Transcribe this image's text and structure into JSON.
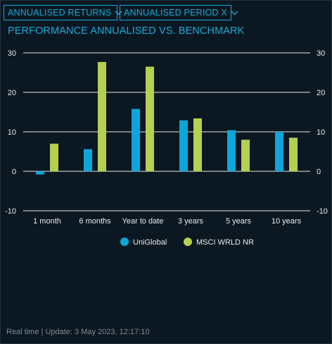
{
  "controls": {
    "returns_dropdown": "ANNUALISED RETURNS",
    "period_dropdown": "ANNUALISED PERIOD X"
  },
  "footer": {
    "status": "Real time",
    "separator": "|",
    "update_text": "Update: 3 May 2023, 12:17:10"
  },
  "colors": {
    "background": "#0b1822",
    "accent": "#1ea8d6",
    "series_uniglobal": "#0ea5d9",
    "series_msci": "#b5cf4f",
    "text": "#e8eaec",
    "footer_text": "#7f8a93"
  },
  "chart_data": {
    "type": "bar",
    "title": "PERFORMANCE ANNUALISED VS. BENCHMARK",
    "categories": [
      "1 month",
      "6 months",
      "Year to date",
      "3 years",
      "5 years",
      "10 years"
    ],
    "series": [
      {
        "name": "UniGlobal",
        "color": "#0ea5d9",
        "values": [
          -0.8,
          5.6,
          15.8,
          12.9,
          10.4,
          10.0
        ]
      },
      {
        "name": "MSCI WRLD NR",
        "color": "#b5cf4f",
        "values": [
          7.0,
          27.7,
          26.5,
          13.4,
          8.0,
          8.5
        ]
      }
    ],
    "ylim": [
      -10,
      30
    ],
    "yticks": [
      -10,
      0,
      10,
      20,
      30
    ],
    "ytick_labels": [
      "-10",
      "0",
      "10",
      "20",
      "30"
    ],
    "secondary_axis": true,
    "grid": true,
    "legend_position": "bottom-center"
  }
}
